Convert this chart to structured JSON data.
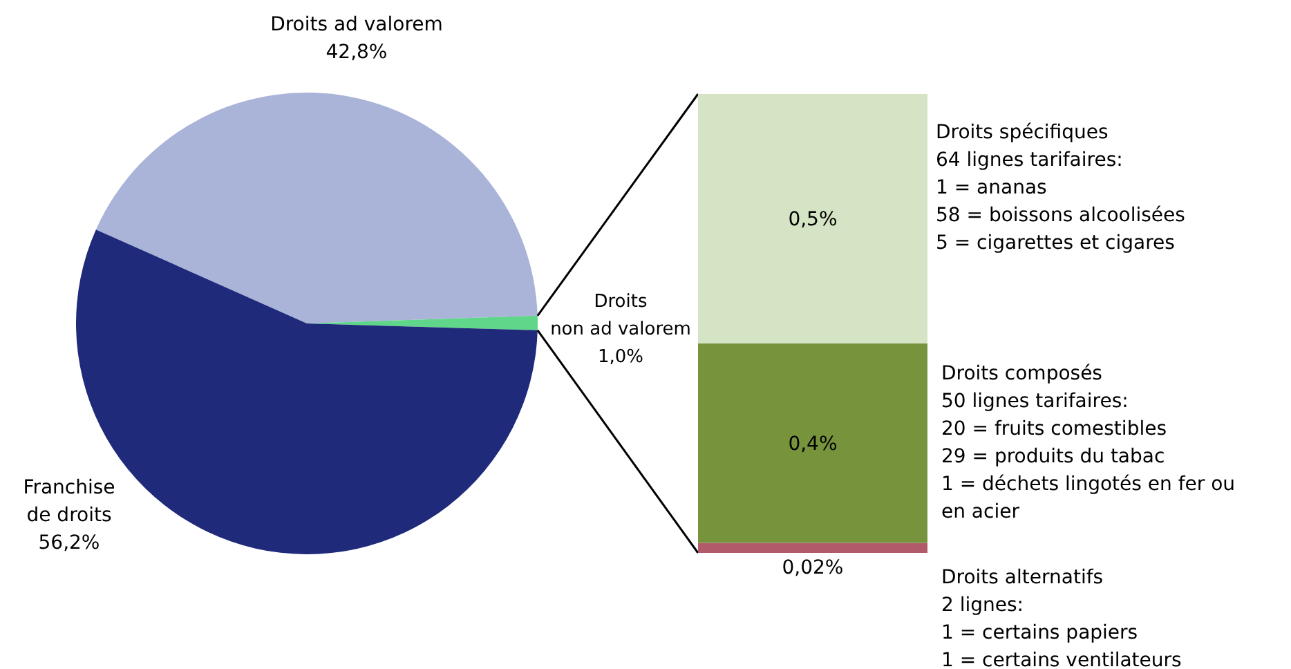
{
  "chart_data": [
    {
      "type": "pie",
      "categories": [
        "Droits ad valorem",
        "Droits\nnon ad valorem",
        "Franchise\nde droits"
      ],
      "values": [
        42.8,
        1.0,
        56.2
      ],
      "colors": [
        "#aab3d8",
        "#5fd68a",
        "#1f2a7a"
      ],
      "value_labels": [
        "42,8%",
        "1,0%",
        "56,2%"
      ]
    },
    {
      "type": "bar",
      "stacked": true,
      "categories": [
        null
      ],
      "tick_labels": false,
      "series": [
        {
          "name": "Droits alternatifs",
          "color": "#b05a6a",
          "values": [
            0.02
          ],
          "value_labels": [
            "0,02%"
          ]
        },
        {
          "name": "Droits composés ",
          "color": "#77943c",
          "values": [
            0.4
          ],
          "value_labels": [
            "0,4%"
          ]
        },
        {
          "name": "Droits spécifiques",
          "color": "#d5e4c4",
          "values": [
            0.5
          ],
          "value_labels": [
            "0,5%"
          ]
        }
      ],
      "annotations": [
        "2 lignes:\n1 = certains papiers\n1 = certains ventilateurs",
        "50 lignes tarifaires:\n20 = fruits comestibles\n29 = produits du tabac\n1 = déchets lingotés en fer ou\nen acier",
        "64 lignes tarifaires:\n1 = ananas\n58 = boissons alcoolisées\n5 = cigarettes et cigares"
      ]
    }
  ]
}
